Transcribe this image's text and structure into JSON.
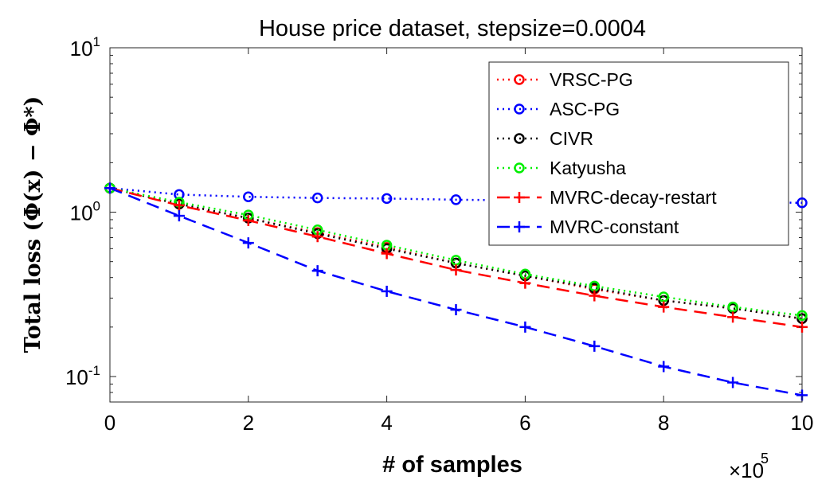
{
  "chart_data": {
    "type": "line",
    "title": "House price dataset, stepsize=0.0004",
    "xlabel": "# of samples",
    "ylabel": "Total loss (Φ(x) − Φ*)",
    "x_multiplier": "×10",
    "x_multiplier_exp": "5",
    "xlim": [
      0,
      1000000
    ],
    "ylim": [
      0.07,
      10
    ],
    "yscale": "log",
    "xticks": [
      0,
      200000,
      400000,
      600000,
      800000,
      1000000
    ],
    "xtick_labels": [
      "0",
      "2",
      "4",
      "6",
      "8",
      "10"
    ],
    "yticks": [
      {
        "value": 0.1,
        "base": "10",
        "exp": "-1"
      },
      {
        "value": 1,
        "base": "10",
        "exp": "0"
      },
      {
        "value": 10,
        "base": "10",
        "exp": "1"
      }
    ],
    "grid": false,
    "legend_position": "top-right",
    "series": [
      {
        "name": "VRSC-PG",
        "color": "#ff0000",
        "line_style": "dotted",
        "marker": "circle",
        "x": [
          0,
          100000,
          200000,
          300000,
          400000,
          500000,
          600000,
          700000,
          800000,
          900000,
          1000000
        ],
        "y": [
          1.4,
          1.12,
          0.92,
          0.75,
          0.61,
          0.49,
          0.41,
          0.34,
          0.29,
          0.26,
          0.225
        ]
      },
      {
        "name": "ASC-PG",
        "color": "#0000ff",
        "line_style": "dotted",
        "marker": "circle",
        "x": [
          0,
          100000,
          200000,
          300000,
          400000,
          500000,
          600000,
          700000,
          800000,
          900000,
          1000000
        ],
        "y": [
          1.4,
          1.28,
          1.24,
          1.22,
          1.21,
          1.19,
          1.18,
          1.17,
          1.16,
          1.15,
          1.14
        ]
      },
      {
        "name": "CIVR",
        "color": "#000000",
        "line_style": "dotted",
        "marker": "circle",
        "x": [
          0,
          100000,
          200000,
          300000,
          400000,
          500000,
          600000,
          700000,
          800000,
          900000,
          1000000
        ],
        "y": [
          1.4,
          1.12,
          0.92,
          0.74,
          0.6,
          0.49,
          0.41,
          0.345,
          0.29,
          0.26,
          0.225
        ]
      },
      {
        "name": "Katyusha",
        "color": "#00ee00",
        "line_style": "dotted",
        "marker": "circle",
        "x": [
          0,
          100000,
          200000,
          300000,
          400000,
          500000,
          600000,
          700000,
          800000,
          900000,
          1000000
        ],
        "y": [
          1.4,
          1.15,
          0.96,
          0.78,
          0.63,
          0.51,
          0.42,
          0.355,
          0.305,
          0.265,
          0.235
        ]
      },
      {
        "name": "MVRC-decay-restart",
        "color": "#ff0000",
        "line_style": "dashed",
        "marker": "plus",
        "x": [
          0,
          100000,
          200000,
          300000,
          400000,
          500000,
          600000,
          700000,
          800000,
          900000,
          1000000
        ],
        "y": [
          1.4,
          1.1,
          0.89,
          0.71,
          0.56,
          0.445,
          0.37,
          0.31,
          0.265,
          0.23,
          0.2
        ]
      },
      {
        "name": "MVRC-constant",
        "color": "#0000ff",
        "line_style": "dashed",
        "marker": "plus",
        "x": [
          0,
          100000,
          200000,
          300000,
          400000,
          500000,
          600000,
          700000,
          800000,
          900000,
          1000000
        ],
        "y": [
          1.4,
          0.95,
          0.65,
          0.44,
          0.33,
          0.255,
          0.2,
          0.153,
          0.115,
          0.092,
          0.077
        ]
      }
    ]
  }
}
